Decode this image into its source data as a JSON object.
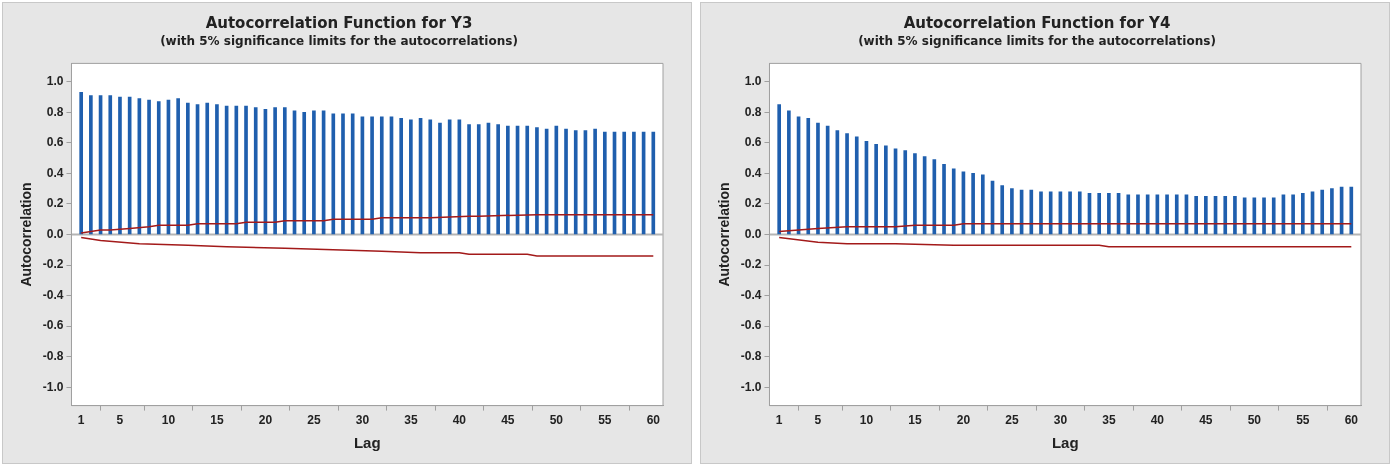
{
  "chart_data": [
    {
      "type": "bar",
      "title": "Autocorrelation Function for Y3",
      "subtitle": "(with 5% significance limits for the autocorrelations)",
      "xlabel": "Lag",
      "ylabel": "Autocorrelation",
      "x": [
        1,
        2,
        3,
        4,
        5,
        6,
        7,
        8,
        9,
        10,
        11,
        12,
        13,
        14,
        15,
        16,
        17,
        18,
        19,
        20,
        21,
        22,
        23,
        24,
        25,
        26,
        27,
        28,
        29,
        30,
        31,
        32,
        33,
        34,
        35,
        36,
        37,
        38,
        39,
        40,
        41,
        42,
        43,
        44,
        45,
        46,
        47,
        48,
        49,
        50,
        51,
        52,
        53,
        54,
        55,
        56,
        57,
        58,
        59,
        60
      ],
      "series": [
        {
          "color": "#1f5fae",
          "values": [
            0.93,
            0.91,
            0.91,
            0.91,
            0.9,
            0.9,
            0.89,
            0.88,
            0.87,
            0.88,
            0.89,
            0.86,
            0.85,
            0.86,
            0.85,
            0.84,
            0.84,
            0.84,
            0.83,
            0.82,
            0.83,
            0.83,
            0.81,
            0.8,
            0.81,
            0.81,
            0.79,
            0.79,
            0.79,
            0.77,
            0.77,
            0.77,
            0.77,
            0.76,
            0.75,
            0.76,
            0.75,
            0.73,
            0.75,
            0.75,
            0.72,
            0.72,
            0.73,
            0.72,
            0.71,
            0.71,
            0.71,
            0.7,
            0.69,
            0.71,
            0.69,
            0.68,
            0.68,
            0.69,
            0.67,
            0.67,
            0.67,
            0.67,
            0.67,
            0.67
          ]
        },
        {
          "type": "line",
          "color": "#a31a1a",
          "x": [
            1,
            2,
            3,
            4,
            6,
            8,
            9,
            12,
            13,
            17,
            18,
            21,
            22,
            26,
            27,
            31,
            32,
            36,
            37,
            41,
            42,
            48,
            49,
            55,
            56,
            60
          ],
          "values": [
            0.01,
            0.02,
            0.03,
            0.03,
            0.04,
            0.05,
            0.06,
            0.06,
            0.07,
            0.07,
            0.08,
            0.08,
            0.09,
            0.09,
            0.1,
            0.1,
            0.11,
            0.11,
            0.11,
            0.12,
            0.12,
            0.13,
            0.13,
            0.13,
            0.13,
            0.13
          ]
        },
        {
          "type": "line",
          "color": "#a31a1a",
          "x": [
            1,
            3,
            7,
            12,
            16,
            22,
            27,
            32,
            36,
            40,
            41,
            47,
            48,
            55,
            56,
            60
          ],
          "values": [
            -0.02,
            -0.04,
            -0.06,
            -0.07,
            -0.08,
            -0.09,
            -0.1,
            -0.11,
            -0.12,
            -0.12,
            -0.13,
            -0.13,
            -0.14,
            -0.14,
            -0.14,
            -0.14
          ]
        }
      ],
      "xlim": [
        0,
        61
      ],
      "xticks": [
        1,
        5,
        10,
        15,
        20,
        25,
        30,
        35,
        40,
        45,
        50,
        55,
        60
      ],
      "ylim": [
        -1.12,
        1.12
      ],
      "yticks": [
        {
          "value": -1,
          "label": "-1.0"
        },
        -0.8,
        -0.6,
        -0.4,
        -0.2,
        {
          "value": 0,
          "label": "0.0"
        },
        0.2,
        0.4,
        0.6,
        0.8,
        {
          "value": 1,
          "label": "1.0"
        }
      ],
      "ref_lines": [
        {
          "axis": "y",
          "value": 0,
          "label": null,
          "color": "#b4b4b4"
        }
      ],
      "grid": false,
      "legend": false,
      "marker": "none",
      "line_style": "solid"
    },
    {
      "type": "bar",
      "title": "Autocorrelation Function for Y4",
      "subtitle": "(with 5% significance limits for the autocorrelations)",
      "xlabel": "Lag",
      "ylabel": "Autocorrelation",
      "x": [
        1,
        2,
        3,
        4,
        5,
        6,
        7,
        8,
        9,
        10,
        11,
        12,
        13,
        14,
        15,
        16,
        17,
        18,
        19,
        20,
        21,
        22,
        23,
        24,
        25,
        26,
        27,
        28,
        29,
        30,
        31,
        32,
        33,
        34,
        35,
        36,
        37,
        38,
        39,
        40,
        41,
        42,
        43,
        44,
        45,
        46,
        47,
        48,
        49,
        50,
        51,
        52,
        53,
        54,
        55,
        56,
        57,
        58,
        59,
        60
      ],
      "series": [
        {
          "color": "#1f5fae",
          "values": [
            0.85,
            0.81,
            0.77,
            0.76,
            0.73,
            0.71,
            0.68,
            0.66,
            0.64,
            0.61,
            0.59,
            0.58,
            0.56,
            0.55,
            0.53,
            0.51,
            0.49,
            0.46,
            0.43,
            0.41,
            0.4,
            0.39,
            0.35,
            0.32,
            0.3,
            0.29,
            0.29,
            0.28,
            0.28,
            0.28,
            0.28,
            0.28,
            0.27,
            0.27,
            0.27,
            0.27,
            0.26,
            0.26,
            0.26,
            0.26,
            0.26,
            0.26,
            0.26,
            0.25,
            0.25,
            0.25,
            0.25,
            0.25,
            0.24,
            0.24,
            0.24,
            0.24,
            0.26,
            0.26,
            0.27,
            0.28,
            0.29,
            0.3,
            0.31,
            0.31
          ]
        },
        {
          "type": "line",
          "color": "#a31a1a",
          "x": [
            1,
            5,
            8,
            10,
            13,
            15,
            19,
            20,
            34,
            35,
            60
          ],
          "values": [
            0.02,
            0.04,
            0.05,
            0.05,
            0.05,
            0.06,
            0.06,
            0.07,
            0.07,
            0.07,
            0.07
          ]
        },
        {
          "type": "line",
          "color": "#a31a1a",
          "x": [
            1,
            5,
            8,
            13,
            19,
            20,
            34,
            35,
            60
          ],
          "values": [
            -0.02,
            -0.05,
            -0.06,
            -0.06,
            -0.07,
            -0.07,
            -0.07,
            -0.08,
            -0.08
          ]
        }
      ],
      "xlim": [
        0,
        61
      ],
      "xticks": [
        1,
        5,
        10,
        15,
        20,
        25,
        30,
        35,
        40,
        45,
        50,
        55,
        60
      ],
      "ylim": [
        -1.12,
        1.12
      ],
      "yticks": [
        {
          "value": -1,
          "label": "-1.0"
        },
        -0.8,
        -0.6,
        -0.4,
        -0.2,
        {
          "value": 0,
          "label": "0.0"
        },
        0.2,
        0.4,
        0.6,
        0.8,
        {
          "value": 1,
          "label": "1.0"
        }
      ],
      "ref_lines": [
        {
          "axis": "y",
          "value": 0,
          "label": null,
          "color": "#b4b4b4"
        }
      ],
      "grid": false,
      "legend": false,
      "marker": "none",
      "line_style": "solid"
    }
  ]
}
